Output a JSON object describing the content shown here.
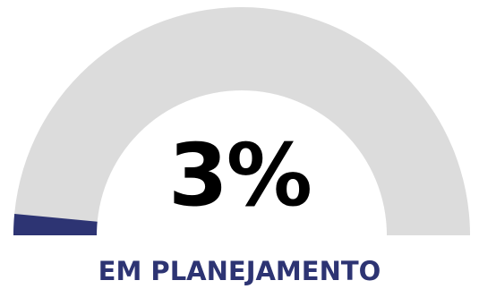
{
  "chart_data": {
    "type": "gauge",
    "value": 3,
    "max": 100,
    "value_label": "3%",
    "status_label": "EM PLANEJAMENTO",
    "colors": {
      "track": "#dcdcdc",
      "fill": "#2d3473",
      "label": "#2d3473",
      "value_text": "#000000"
    }
  }
}
